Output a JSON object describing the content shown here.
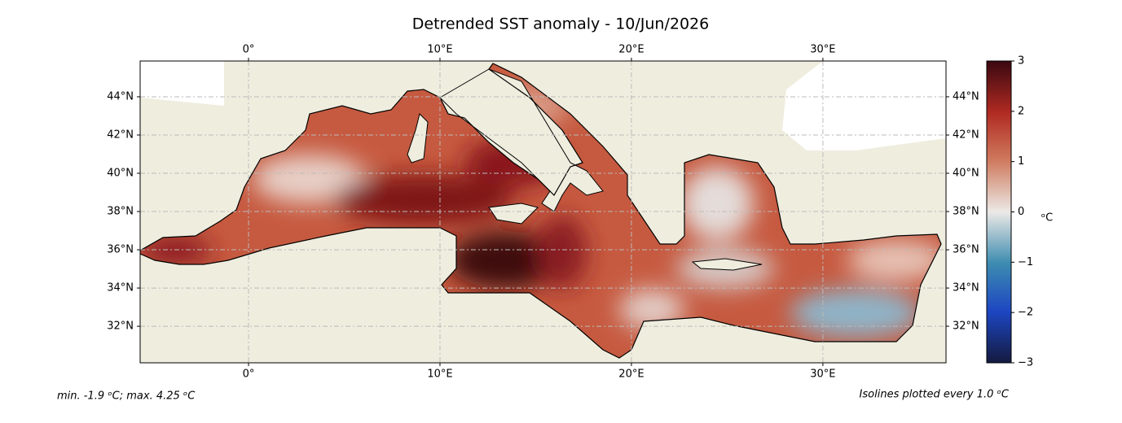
{
  "title": "Detrended SST anomaly - 10/Jun/2026",
  "map": {
    "lonlim": [
      -5.66,
      36.43
    ],
    "latlim": [
      30.09,
      45.87
    ],
    "lonticks": [
      {
        "value": 0,
        "label": "0°"
      },
      {
        "value": 10,
        "label": "10°E"
      },
      {
        "value": 20,
        "label": "20°E"
      },
      {
        "value": 30,
        "label": "30°E"
      }
    ],
    "latticks": [
      {
        "value": 32,
        "label": "32°N"
      },
      {
        "value": 34,
        "label": "34°N"
      },
      {
        "value": 36,
        "label": "36°N"
      },
      {
        "value": 38,
        "label": "38°N"
      },
      {
        "value": 40,
        "label": "40°N"
      },
      {
        "value": 42,
        "label": "42°N"
      },
      {
        "value": 44,
        "label": "44°N"
      }
    ],
    "grid": true
  },
  "colorbar": {
    "lim": [
      -3,
      3
    ],
    "ticks": [
      {
        "value": -3,
        "label": "−3"
      },
      {
        "value": -2,
        "label": "−2"
      },
      {
        "value": -1,
        "label": "−1"
      },
      0,
      1,
      2,
      3
    ],
    "unit": "ᵒC"
  },
  "footer": {
    "left": "min. -1.9 ᵒC; max. 4.25 ᵒC",
    "right": "Isolines plotted every 1.0 ᵒC"
  }
}
